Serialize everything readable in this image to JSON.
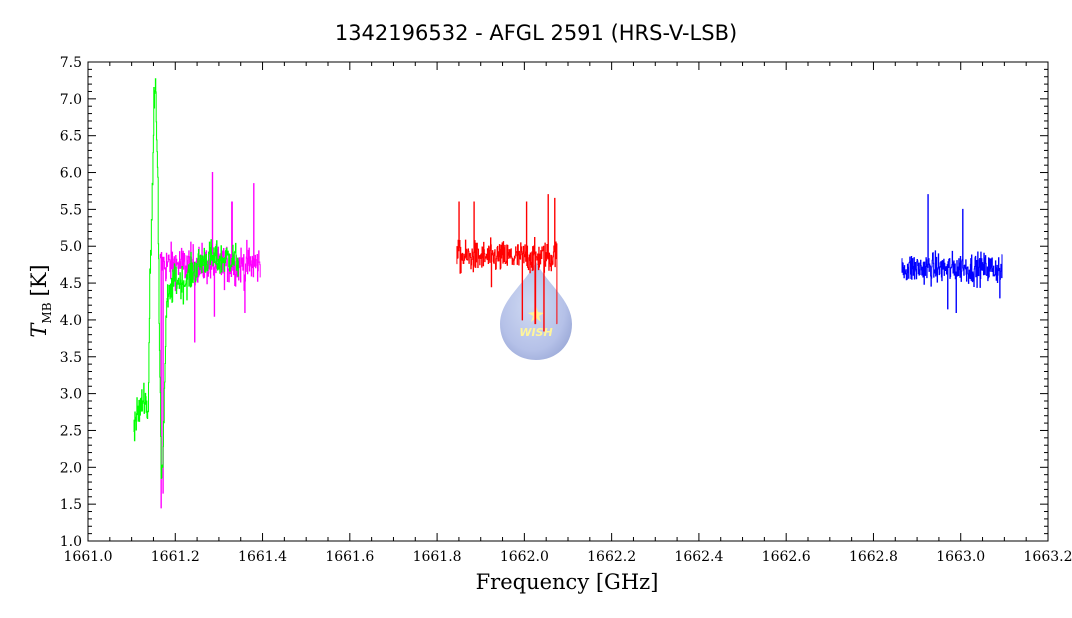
{
  "chart_data": {
    "type": "line",
    "title": "1342196532 - AFGL 2591 (HRS-V-LSB)",
    "xlabel": "Frequency [GHz]",
    "ylabel": {
      "symbol": "T",
      "subscript": "MB",
      "unit": "[K]"
    },
    "xlim": [
      1661.0,
      1663.2
    ],
    "ylim": [
      1.0,
      7.5
    ],
    "xticks": [
      "1661.0",
      "1661.2",
      "1661.4",
      "1661.6",
      "1661.8",
      "1662.0",
      "1662.2",
      "1662.4",
      "1662.6",
      "1662.8",
      "1663.0",
      "1663.2"
    ],
    "yticks": [
      "1.0",
      "1.5",
      "2.0",
      "2.5",
      "3.0",
      "3.5",
      "4.0",
      "4.5",
      "5.0",
      "5.5",
      "6.0",
      "6.5",
      "7.0",
      "7.5"
    ],
    "grid": false,
    "watermark": "WISH",
    "series": [
      {
        "color": "#ff00ff",
        "x_range": [
          1661.165,
          1661.395
        ],
        "mean": 4.75,
        "noise": 0.35,
        "spikes": [
          [
            1661.168,
            1.45
          ],
          [
            1661.172,
            1.65
          ],
          [
            1661.245,
            3.7
          ],
          [
            1661.285,
            6.0
          ],
          [
            1661.38,
            5.85
          ],
          [
            1661.33,
            5.6
          ],
          [
            1661.29,
            4.05
          ],
          [
            1661.36,
            4.1
          ]
        ]
      },
      {
        "color": "#00ff00",
        "x_range": [
          1661.105,
          1661.345
        ],
        "profile": [
          [
            1661.105,
            2.6
          ],
          [
            1661.12,
            2.8
          ],
          [
            1661.13,
            3.0
          ],
          [
            1661.138,
            2.7
          ],
          [
            1661.142,
            4.5
          ],
          [
            1661.147,
            5.5
          ],
          [
            1661.151,
            7.0
          ],
          [
            1661.155,
            7.28
          ],
          [
            1661.16,
            6.0
          ],
          [
            1661.164,
            3.5
          ],
          [
            1661.168,
            1.9
          ],
          [
            1661.172,
            2.2
          ],
          [
            1661.18,
            4.2
          ],
          [
            1661.2,
            4.55
          ],
          [
            1661.22,
            4.5
          ],
          [
            1661.24,
            4.65
          ],
          [
            1661.26,
            4.8
          ],
          [
            1661.28,
            4.85
          ],
          [
            1661.3,
            4.8
          ],
          [
            1661.32,
            4.85
          ],
          [
            1661.345,
            4.8
          ]
        ],
        "noise": 0.3
      },
      {
        "color": "#ff0000",
        "x_range": [
          1661.845,
          1662.075
        ],
        "mean": 4.85,
        "noise": 0.28,
        "spikes": [
          [
            1661.85,
            5.6
          ],
          [
            1661.885,
            5.6
          ],
          [
            1662.005,
            5.6
          ],
          [
            1662.055,
            5.7
          ],
          [
            1662.07,
            5.65
          ],
          [
            1662.045,
            3.85
          ],
          [
            1662.025,
            3.95
          ],
          [
            1662.075,
            3.95
          ],
          [
            1661.925,
            4.45
          ],
          [
            1661.995,
            4.0
          ]
        ]
      },
      {
        "color": "#0000ff",
        "x_range": [
          1662.865,
          1663.095
        ],
        "mean": 4.7,
        "noise": 0.27,
        "spikes": [
          [
            1662.925,
            5.7
          ],
          [
            1663.005,
            5.5
          ],
          [
            1662.99,
            4.1
          ],
          [
            1663.09,
            4.3
          ],
          [
            1662.97,
            4.15
          ]
        ]
      }
    ]
  }
}
